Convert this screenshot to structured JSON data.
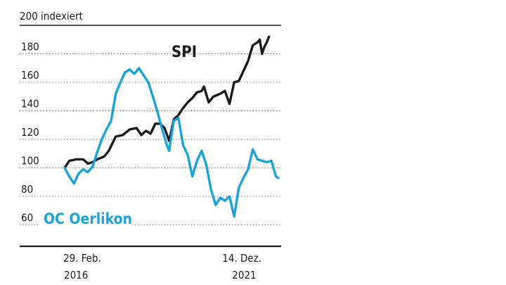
{
  "chart_data": {
    "type": "line",
    "ylabel": "200 indexiert",
    "ylim": [
      45,
      200
    ],
    "y_ticks": [
      60,
      80,
      100,
      120,
      140,
      160,
      180
    ],
    "x_labels": [
      {
        "day": "29. Feb.",
        "year": "2016",
        "t": 0
      },
      {
        "day": "14. Dez.",
        "year": "2021",
        "t": 70
      }
    ],
    "grid": true,
    "grid_style": "dotted",
    "series": [
      {
        "name": "SPI",
        "color": "#1a1a1a",
        "points": [
          [
            0,
            100
          ],
          [
            2,
            105
          ],
          [
            5,
            106
          ],
          [
            8,
            106
          ],
          [
            10,
            103
          ],
          [
            12,
            104
          ],
          [
            14,
            106
          ],
          [
            17,
            108
          ],
          [
            19,
            112
          ],
          [
            22,
            122
          ],
          [
            25,
            123
          ],
          [
            28,
            127
          ],
          [
            31,
            128
          ],
          [
            33,
            123
          ],
          [
            35,
            126
          ],
          [
            37,
            124
          ],
          [
            39,
            131
          ],
          [
            41,
            131
          ],
          [
            43,
            128
          ],
          [
            45,
            119
          ],
          [
            47,
            134
          ],
          [
            49,
            137
          ],
          [
            51,
            142
          ],
          [
            53,
            146
          ],
          [
            55,
            149
          ],
          [
            57,
            153
          ],
          [
            59,
            154
          ],
          [
            60,
            157
          ],
          [
            62,
            146
          ],
          [
            64,
            150
          ],
          [
            67,
            152
          ],
          [
            69,
            154
          ],
          [
            71,
            145
          ],
          [
            73,
            160
          ],
          [
            75,
            161
          ],
          [
            77,
            168
          ],
          [
            79,
            175
          ],
          [
            81,
            186
          ],
          [
            83,
            188
          ],
          [
            84,
            190
          ],
          [
            85,
            180
          ],
          [
            86,
            185
          ],
          [
            87,
            188
          ],
          [
            88,
            192
          ]
        ]
      },
      {
        "name": "OC Oerlikon",
        "color": "#1aa3d9",
        "points": [
          [
            0,
            100
          ],
          [
            2,
            94
          ],
          [
            4,
            89
          ],
          [
            6,
            96
          ],
          [
            8,
            99
          ],
          [
            10,
            97
          ],
          [
            12,
            101
          ],
          [
            14,
            111
          ],
          [
            16,
            120
          ],
          [
            18,
            127
          ],
          [
            20,
            133
          ],
          [
            22,
            152
          ],
          [
            24,
            160
          ],
          [
            26,
            167
          ],
          [
            28,
            169
          ],
          [
            30,
            166
          ],
          [
            32,
            170
          ],
          [
            34,
            165
          ],
          [
            36,
            160
          ],
          [
            38,
            150
          ],
          [
            40,
            139
          ],
          [
            42,
            127
          ],
          [
            44,
            116
          ],
          [
            45,
            112
          ],
          [
            47,
            133
          ],
          [
            49,
            135
          ],
          [
            51,
            116
          ],
          [
            53,
            109
          ],
          [
            55,
            94
          ],
          [
            57,
            105
          ],
          [
            59,
            112
          ],
          [
            61,
            102
          ],
          [
            63,
            85
          ],
          [
            65,
            74
          ],
          [
            67,
            79
          ],
          [
            69,
            77
          ],
          [
            71,
            80
          ],
          [
            73,
            66
          ],
          [
            75,
            86
          ],
          [
            77,
            93
          ],
          [
            79,
            99
          ],
          [
            81,
            113
          ],
          [
            83,
            106
          ],
          [
            85,
            105
          ],
          [
            87,
            104
          ],
          [
            89,
            105
          ],
          [
            91,
            94
          ],
          [
            92,
            93
          ]
        ]
      }
    ]
  }
}
